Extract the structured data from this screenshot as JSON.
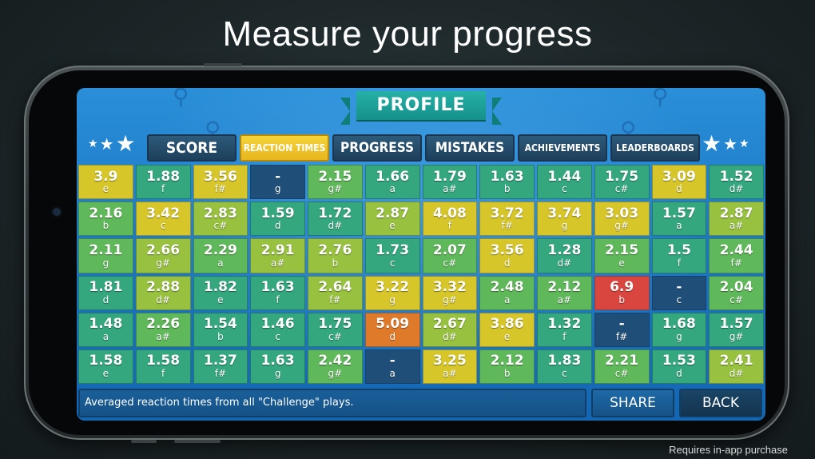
{
  "headline": "Measure your progress",
  "footnote": "Requires in-app purchase",
  "banner": {
    "title": "PROFILE"
  },
  "tabs": [
    {
      "id": "score",
      "label": "SCORE",
      "active": false
    },
    {
      "id": "reaction-times",
      "label": "REACTION TIMES",
      "active": true
    },
    {
      "id": "progress",
      "label": "PROGRESS",
      "active": false
    },
    {
      "id": "mistakes",
      "label": "MISTAKES",
      "active": false
    },
    {
      "id": "achievements",
      "label": "ACHIEVEMENTS",
      "active": false
    },
    {
      "id": "leaderboards",
      "label": "LEADERBOARDS",
      "active": false
    }
  ],
  "colors": {
    "yellow": "#d7c62a",
    "lime": "#97c13f",
    "green": "#5fb85a",
    "teal": "#34a77f",
    "dark": "#1f4f78",
    "orange": "#e07a2b",
    "red": "#d9463f"
  },
  "grid": [
    [
      {
        "value": "3.9",
        "note": "e",
        "color": "yellow"
      },
      {
        "value": "1.88",
        "note": "f",
        "color": "teal"
      },
      {
        "value": "3.56",
        "note": "f#",
        "color": "yellow"
      },
      {
        "value": "-",
        "note": "g",
        "color": "dark"
      },
      {
        "value": "2.15",
        "note": "g#",
        "color": "green"
      },
      {
        "value": "1.66",
        "note": "a",
        "color": "teal"
      },
      {
        "value": "1.79",
        "note": "a#",
        "color": "teal"
      },
      {
        "value": "1.63",
        "note": "b",
        "color": "teal"
      },
      {
        "value": "1.44",
        "note": "c",
        "color": "teal"
      },
      {
        "value": "1.75",
        "note": "c#",
        "color": "teal"
      },
      {
        "value": "3.09",
        "note": "d",
        "color": "yellow"
      },
      {
        "value": "1.52",
        "note": "d#",
        "color": "teal"
      }
    ],
    [
      {
        "value": "2.16",
        "note": "b",
        "color": "green"
      },
      {
        "value": "3.42",
        "note": "c",
        "color": "yellow"
      },
      {
        "value": "2.83",
        "note": "c#",
        "color": "lime"
      },
      {
        "value": "1.59",
        "note": "d",
        "color": "teal"
      },
      {
        "value": "1.72",
        "note": "d#",
        "color": "teal"
      },
      {
        "value": "2.87",
        "note": "e",
        "color": "lime"
      },
      {
        "value": "4.08",
        "note": "f",
        "color": "yellow"
      },
      {
        "value": "3.72",
        "note": "f#",
        "color": "yellow"
      },
      {
        "value": "3.74",
        "note": "g",
        "color": "yellow"
      },
      {
        "value": "3.03",
        "note": "g#",
        "color": "yellow"
      },
      {
        "value": "1.57",
        "note": "a",
        "color": "teal"
      },
      {
        "value": "2.87",
        "note": "a#",
        "color": "lime"
      }
    ],
    [
      {
        "value": "2.11",
        "note": "g",
        "color": "green"
      },
      {
        "value": "2.66",
        "note": "g#",
        "color": "lime"
      },
      {
        "value": "2.29",
        "note": "a",
        "color": "green"
      },
      {
        "value": "2.91",
        "note": "a#",
        "color": "lime"
      },
      {
        "value": "2.76",
        "note": "b",
        "color": "lime"
      },
      {
        "value": "1.73",
        "note": "c",
        "color": "teal"
      },
      {
        "value": "2.07",
        "note": "c#",
        "color": "green"
      },
      {
        "value": "3.56",
        "note": "d",
        "color": "yellow"
      },
      {
        "value": "1.28",
        "note": "d#",
        "color": "teal"
      },
      {
        "value": "2.15",
        "note": "e",
        "color": "green"
      },
      {
        "value": "1.5",
        "note": "f",
        "color": "teal"
      },
      {
        "value": "2.44",
        "note": "f#",
        "color": "green"
      }
    ],
    [
      {
        "value": "1.81",
        "note": "d",
        "color": "teal"
      },
      {
        "value": "2.88",
        "note": "d#",
        "color": "lime"
      },
      {
        "value": "1.82",
        "note": "e",
        "color": "teal"
      },
      {
        "value": "1.63",
        "note": "f",
        "color": "teal"
      },
      {
        "value": "2.64",
        "note": "f#",
        "color": "lime"
      },
      {
        "value": "3.22",
        "note": "g",
        "color": "yellow"
      },
      {
        "value": "3.32",
        "note": "g#",
        "color": "yellow"
      },
      {
        "value": "2.48",
        "note": "a",
        "color": "green"
      },
      {
        "value": "2.12",
        "note": "a#",
        "color": "green"
      },
      {
        "value": "6.9",
        "note": "b",
        "color": "red"
      },
      {
        "value": "-",
        "note": "c",
        "color": "dark"
      },
      {
        "value": "2.04",
        "note": "c#",
        "color": "green"
      }
    ],
    [
      {
        "value": "1.48",
        "note": "a",
        "color": "teal"
      },
      {
        "value": "2.26",
        "note": "a#",
        "color": "green"
      },
      {
        "value": "1.54",
        "note": "b",
        "color": "teal"
      },
      {
        "value": "1.46",
        "note": "c",
        "color": "teal"
      },
      {
        "value": "1.75",
        "note": "c#",
        "color": "teal"
      },
      {
        "value": "5.09",
        "note": "d",
        "color": "orange"
      },
      {
        "value": "2.67",
        "note": "d#",
        "color": "lime"
      },
      {
        "value": "3.86",
        "note": "e",
        "color": "yellow"
      },
      {
        "value": "1.32",
        "note": "f",
        "color": "teal"
      },
      {
        "value": "-",
        "note": "f#",
        "color": "dark"
      },
      {
        "value": "1.68",
        "note": "g",
        "color": "teal"
      },
      {
        "value": "1.57",
        "note": "g#",
        "color": "teal"
      }
    ],
    [
      {
        "value": "1.58",
        "note": "e",
        "color": "teal"
      },
      {
        "value": "1.58",
        "note": "f",
        "color": "teal"
      },
      {
        "value": "1.37",
        "note": "f#",
        "color": "teal"
      },
      {
        "value": "1.63",
        "note": "g",
        "color": "teal"
      },
      {
        "value": "2.42",
        "note": "g#",
        "color": "green"
      },
      {
        "value": "-",
        "note": "a",
        "color": "dark"
      },
      {
        "value": "3.25",
        "note": "a#",
        "color": "yellow"
      },
      {
        "value": "2.12",
        "note": "b",
        "color": "green"
      },
      {
        "value": "1.83",
        "note": "c",
        "color": "teal"
      },
      {
        "value": "2.21",
        "note": "c#",
        "color": "green"
      },
      {
        "value": "1.53",
        "note": "d",
        "color": "teal"
      },
      {
        "value": "2.41",
        "note": "d#",
        "color": "lime"
      }
    ]
  ],
  "footer": {
    "info": "Averaged reaction times from all \"Challenge\" plays.",
    "share_label": "SHARE",
    "back_label": "BACK"
  }
}
